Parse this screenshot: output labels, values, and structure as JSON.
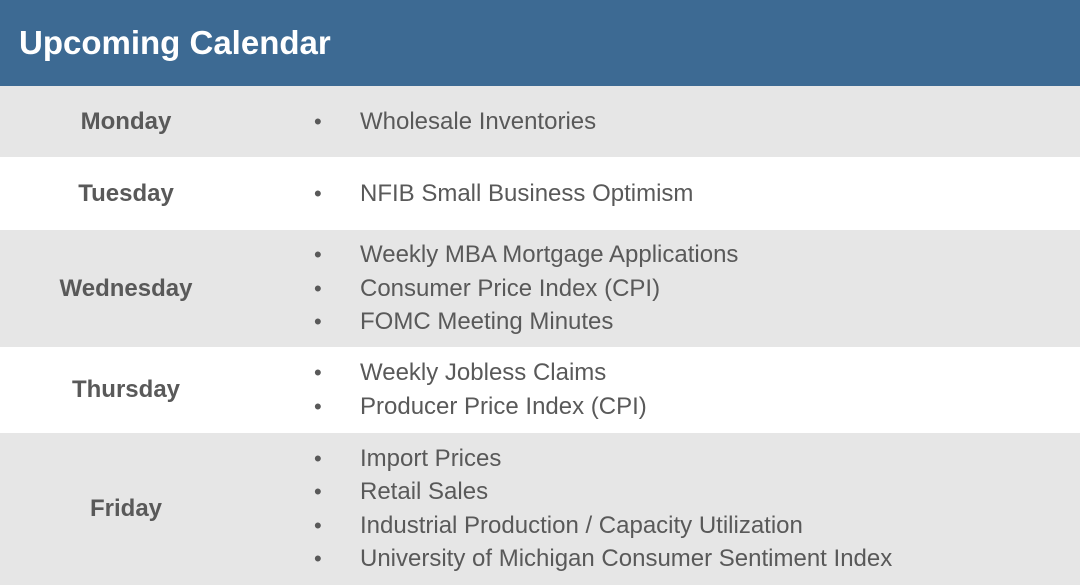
{
  "header": {
    "title": "Upcoming Calendar"
  },
  "bullet_char": "•",
  "rows": [
    {
      "day": "Monday",
      "events": [
        "Wholesale Inventories"
      ]
    },
    {
      "day": "Tuesday",
      "events": [
        "NFIB Small Business Optimism"
      ]
    },
    {
      "day": "Wednesday",
      "events": [
        "Weekly MBA Mortgage Applications",
        "Consumer Price Index (CPI)",
        "FOMC Meeting Minutes"
      ]
    },
    {
      "day": "Thursday",
      "events": [
        "Weekly Jobless Claims",
        "Producer Price Index (CPI)"
      ]
    },
    {
      "day": "Friday",
      "events": [
        "Import Prices",
        "Retail Sales",
        "Industrial Production / Capacity Utilization",
        "University of Michigan Consumer Sentiment Index"
      ]
    }
  ],
  "colors": {
    "header_bg": "#3d6a93",
    "header_text": "#ffffff",
    "row_shaded": "#e6e6e6",
    "row_plain": "#ffffff",
    "text": "#595959"
  }
}
